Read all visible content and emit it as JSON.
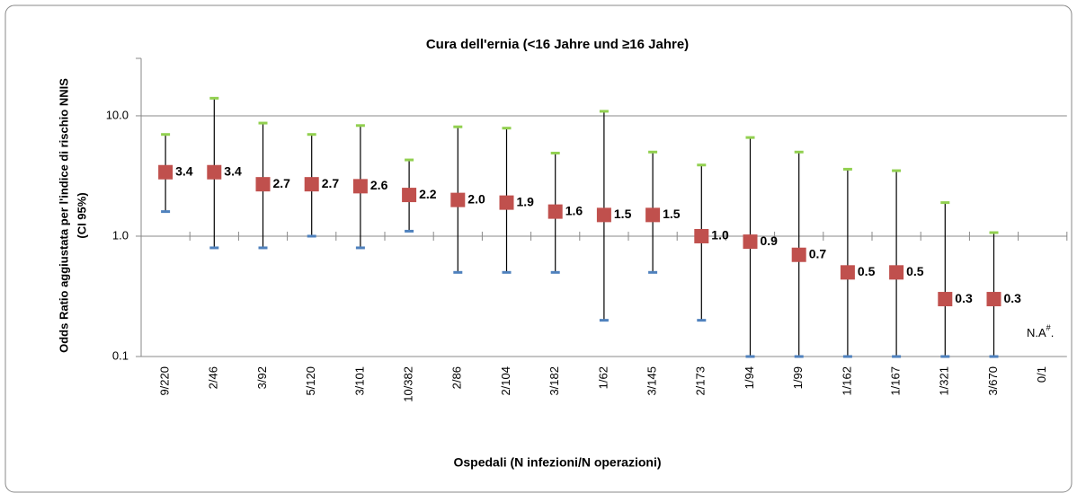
{
  "chart_data": {
    "type": "forest",
    "title": "Cura dell'ernia (<16 Jahre und ≥16 Jahre)",
    "x_label": "Ospedali (N infezioni/N operazioni)",
    "y_label": [
      "Odds Ratio aggiustata per l'indice di rischio NNIS",
      "(CI 95%)"
    ],
    "categories": [
      "9/220",
      "2/46",
      "3/92",
      "5/120",
      "3/101",
      "10/382",
      "2/86",
      "2/104",
      "3/182",
      "1/62",
      "3/145",
      "2/173",
      "1/94",
      "1/99",
      "1/162",
      "1/167",
      "1/321",
      "3/670",
      "0/1"
    ],
    "values": [
      3.4,
      3.4,
      2.7,
      2.7,
      2.6,
      2.2,
      2.0,
      1.9,
      1.6,
      1.5,
      1.5,
      1.0,
      0.9,
      0.7,
      0.5,
      0.5,
      0.3,
      0.3,
      null
    ],
    "value_labels": [
      "3.4",
      "3.4",
      "2.7",
      "2.7",
      "2.6",
      "2.2",
      "2.0",
      "1.9",
      "1.6",
      "1.5",
      "1.5",
      "1.0",
      "0.9",
      "0.7",
      "0.5",
      "0.5",
      "0.3",
      "0.3",
      null
    ],
    "ci_low": [
      1.6,
      0.8,
      0.8,
      1.0,
      0.8,
      1.1,
      0.5,
      0.5,
      0.5,
      0.2,
      0.5,
      0.2,
      0.1,
      0.1,
      0.1,
      0.1,
      0.1,
      0.1,
      null
    ],
    "ci_high": [
      7.0,
      14,
      8.7,
      7.0,
      8.3,
      4.3,
      8.1,
      7.9,
      4.9,
      10.9,
      5.0,
      3.9,
      6.6,
      5.0,
      3.6,
      3.5,
      1.9,
      1.07,
      null
    ],
    "color": "#c0504d",
    "ci_low_color": "#4f81bd",
    "ci_high_color": "#92d050",
    "log_scale": true,
    "grid": true,
    "ylim": [
      0.1,
      30
    ],
    "yticks": [
      {
        "value": 0.1,
        "label": "0.1"
      },
      {
        "value": 1,
        "label": "1.0"
      },
      {
        "value": 10,
        "label": "10.0"
      }
    ],
    "annotation": {
      "text": "N.A",
      "sup": "#",
      "suffix": "."
    }
  }
}
